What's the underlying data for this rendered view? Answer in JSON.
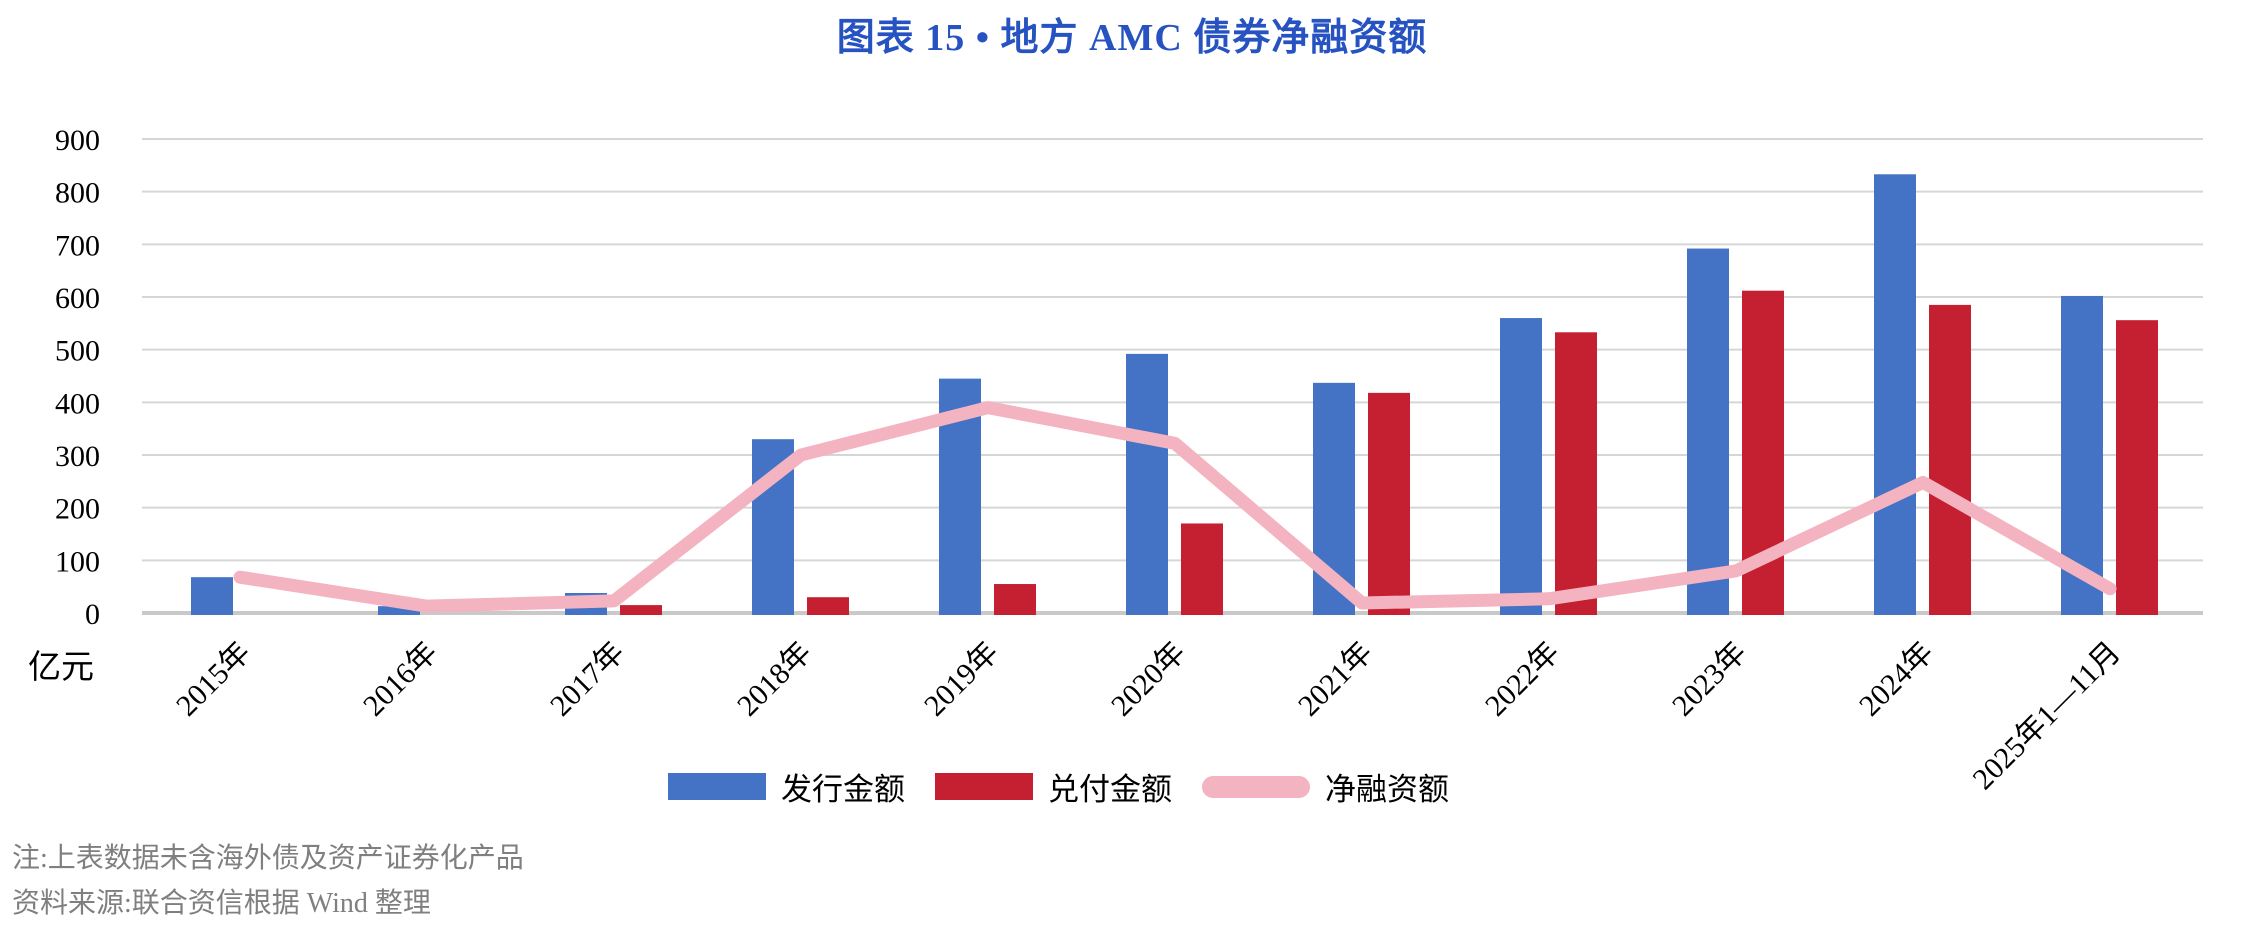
{
  "title": "图表 15 • 地方 AMC 债券净融资额",
  "notes": [
    "注:上表数据未含海外债及资产证券化产品",
    "资料来源:联合资信根据 Wind 整理"
  ],
  "colors": {
    "title_blue": "#2653C1",
    "issuance_blue": "#4472C4",
    "redemption_red": "#C52032",
    "net_pink": "#F4B3C0",
    "gridline": "#D6D6D6",
    "baseline": "#C9C9C9",
    "note_gray": "#7F7F7F",
    "axis_text": "#000000"
  },
  "chart_data": {
    "type": "bar",
    "title": "图表 15 • 地方 AMC 债券净融资额",
    "ylabel": "亿元",
    "ylim": [
      0,
      900
    ],
    "ytick_step": 100,
    "grid": true,
    "legend_position": "bottom",
    "categories": [
      "2015年",
      "2016年",
      "2017年",
      "2018年",
      "2019年",
      "2020年",
      "2021年",
      "2022年",
      "2023年",
      "2024年",
      "2025年1—11月"
    ],
    "series": [
      {
        "name": "发行金额",
        "type": "bar",
        "color": "#4472C4",
        "values": [
          68,
          13,
          38,
          330,
          445,
          492,
          437,
          560,
          692,
          833,
          602
        ]
      },
      {
        "name": "兑付金额",
        "type": "bar",
        "color": "#C52032",
        "values": [
          0,
          0,
          15,
          30,
          55,
          170,
          418,
          533,
          612,
          585,
          556
        ]
      },
      {
        "name": "净融资额",
        "type": "line",
        "color": "#F4B3C0",
        "values": [
          68,
          13,
          23,
          300,
          390,
          322,
          19,
          27,
          80,
          248,
          46
        ]
      }
    ]
  }
}
